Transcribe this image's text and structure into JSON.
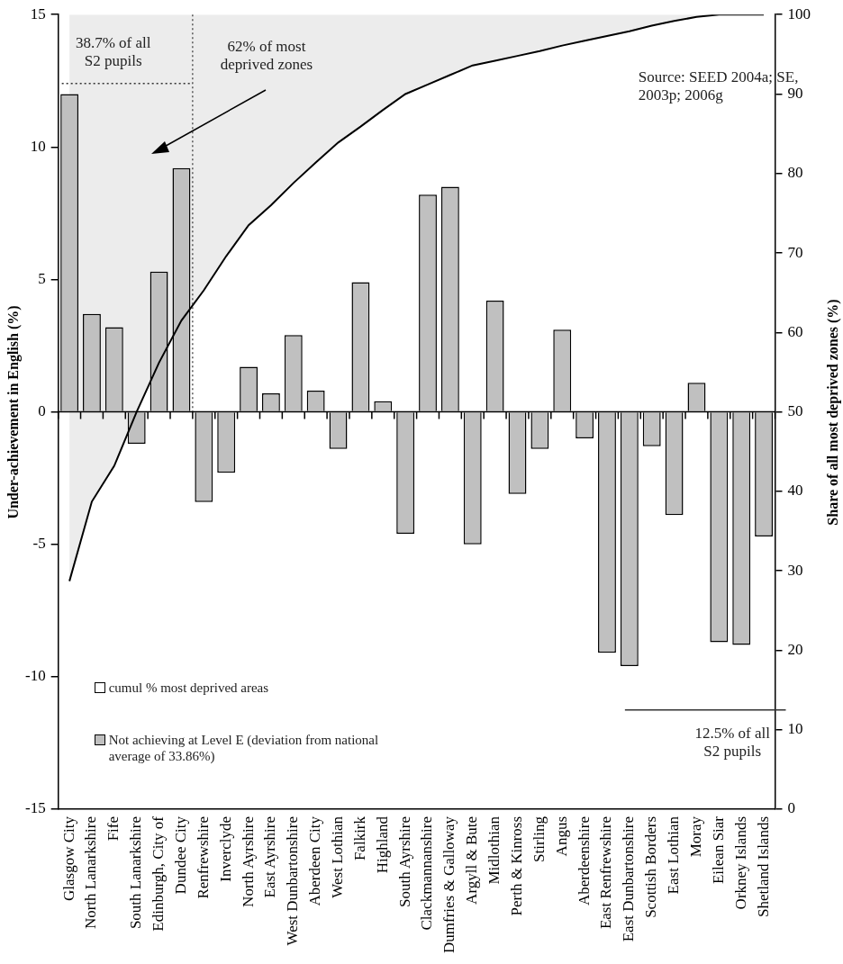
{
  "chart_data": {
    "type": "bar",
    "ylabel": "Under-achievement in English (%)",
    "y2label": "Share of all most deprived zones (%)",
    "categories": [
      "Glasgow City",
      "North Lanarkshire",
      "Fife",
      "South Lanarkshire",
      "Edinburgh, City of",
      "Dundee City",
      "Renfrewshire",
      "Inverclyde",
      "North Ayrshire",
      "East Ayrshire",
      "West Dunbartonshire",
      "Aberdeen City",
      "West Lothian",
      "Falkirk",
      "Highland",
      "South Ayrshire",
      "Clackmannanshire",
      "Dumfries & Galloway",
      "Argyll & Bute",
      "Midlothian",
      "Perth & Kinross",
      "Stirling",
      "Angus",
      "Aberdeenshire",
      "East Renfrewshire",
      "East Dunbartonshire",
      "Scottish Borders",
      "East Lothian",
      "Moray",
      "Eilean Siar",
      "Orkney Islands",
      "Shetland Islands"
    ],
    "series": [
      {
        "name": "cumul % most deprived areas",
        "type": "line",
        "axis": "y2",
        "color": "#000000",
        "values": [
          28.7,
          38.7,
          43.2,
          50,
          56.2,
          61.5,
          65.3,
          69.6,
          73.5,
          76,
          78.8,
          81.4,
          83.9,
          85.9,
          88,
          90,
          91.2,
          92.4,
          93.6,
          94.2,
          94.8,
          95.4,
          96.1,
          96.7,
          97.3,
          97.9,
          98.6,
          99.2,
          99.7,
          100,
          100,
          100
        ]
      },
      {
        "name": "Not achieving at Level E (deviation from national average of 33.86%)",
        "type": "bar",
        "color": "#c0c0c0",
        "values": [
          12.0,
          3.7,
          3.2,
          -1.2,
          5.3,
          9.2,
          -3.4,
          -2.3,
          1.7,
          0.7,
          2.9,
          0.8,
          -1.4,
          4.9,
          0.4,
          -4.6,
          8.2,
          8.5,
          -5.0,
          4.2,
          -3.1,
          -1.4,
          3.1,
          -1.0,
          -9.1,
          -9.6,
          -1.3,
          -3.9,
          1.1,
          -8.7,
          -8.8,
          -4.7
        ]
      }
    ],
    "ylim": [
      -15,
      15
    ],
    "yticks": [
      -15,
      -10,
      -5,
      0,
      5,
      10,
      15
    ],
    "y2lim": [
      0,
      100
    ],
    "y2ticks": [
      0,
      10,
      20,
      30,
      40,
      50,
      60,
      70,
      80,
      90,
      100
    ],
    "grid": false,
    "legend": "bottom left",
    "marker": "none",
    "ref_lines": [
      {
        "axis": "y",
        "value": 12.4,
        "label": "38.7% of all S2 pupils",
        "line_style": "dotted",
        "color": "#333333"
      },
      {
        "axis": "x",
        "value": "Dundee City",
        "line_style": "dotted",
        "color": "#333333"
      },
      {
        "axis": "y",
        "value": 0,
        "line_style": "solid",
        "color": "#000000"
      },
      {
        "axis": "y2",
        "value": 12.5,
        "label": "12.5% of all S2 pupils",
        "line_style": "solid",
        "color": "#333333"
      }
    ],
    "annotations": [
      "62% of most deprived zones",
      "Source: SEED 2004a; SE, 2003p; 2006g"
    ]
  }
}
